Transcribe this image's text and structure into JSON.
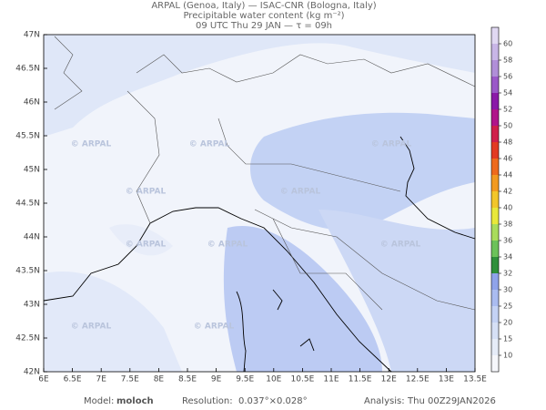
{
  "header": {
    "line1": "ARPAL (Genoa, Italy)  —  ISAC-CNR (Bologna, Italy)",
    "line2": "Precipitable water content (kg m⁻²)",
    "line3": "09 UTC Thu 29 JAN   —   τ = 09h"
  },
  "map": {
    "lat_labels": [
      "47N",
      "46.5N",
      "46N",
      "45.5N",
      "45N",
      "44.5N",
      "44N",
      "43.5N",
      "43N",
      "42.5N",
      "42N"
    ],
    "lon_labels": [
      "6E",
      "6.5E",
      "7E",
      "7.5E",
      "8E",
      "8.5E",
      "9E",
      "9.5E",
      "10E",
      "10.5E",
      "11E",
      "11.5E",
      "12E",
      "12.5E",
      "13E",
      "13.5E"
    ],
    "watermark": "© ARPAL"
  },
  "colorbar": {
    "ticks": [
      10,
      15,
      20,
      25,
      30,
      32,
      34,
      36,
      38,
      40,
      42,
      44,
      46,
      48,
      50,
      52,
      54,
      56,
      58,
      60
    ],
    "colors": [
      "#f6f7fb",
      "#e6ecf8",
      "#d6e0f6",
      "#c4d2f4",
      "#aabcf0",
      "#8fa3ea",
      "#2f8f3a",
      "#6cc25a",
      "#a9dc5c",
      "#e8e83a",
      "#f2c62a",
      "#f29a20",
      "#ee6a1c",
      "#e23a22",
      "#d01f4a",
      "#b0148a",
      "#8a1aa8",
      "#9a58c8",
      "#b08ed8",
      "#c8b6e6",
      "#e0d8f2"
    ]
  },
  "footer": {
    "model_label": "Model:",
    "model": "moloch",
    "resolution_label": "Resolution:",
    "resolution": "0.037°×0.028°",
    "analysis_label": "Analysis:",
    "analysis": "Thu 00Z29JAN2026"
  }
}
